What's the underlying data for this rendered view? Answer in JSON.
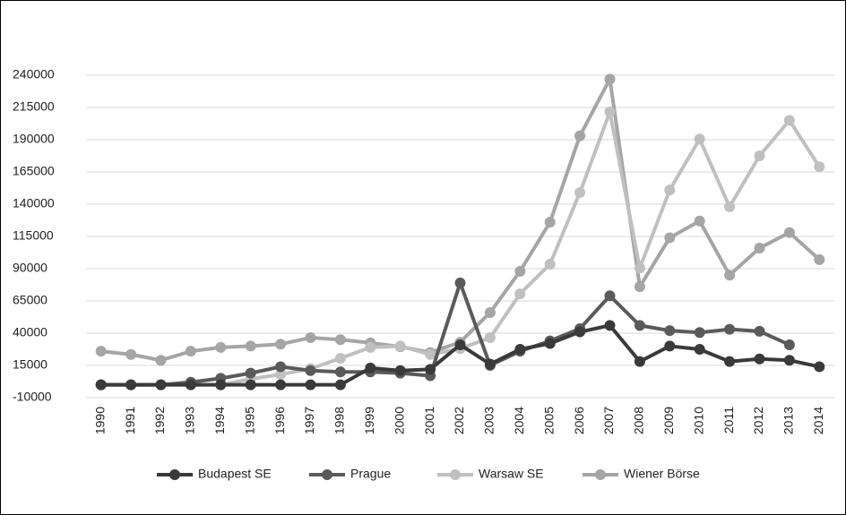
{
  "chart_data": {
    "type": "line",
    "categories": [
      "1990",
      "1991",
      "1992",
      "1993",
      "1994",
      "1995",
      "1996",
      "1997",
      "1998",
      "1999",
      "2000",
      "2001",
      "2002",
      "2003",
      "2004",
      "2005",
      "2006",
      "2007",
      "2008",
      "2009",
      "2010",
      "2011",
      "2012",
      "2013",
      "2014"
    ],
    "series": [
      {
        "name": "Budapest SE",
        "color": "#3a3a3a",
        "values": [
          0,
          0,
          0,
          0,
          0,
          0,
          0,
          0,
          0,
          13000,
          11000,
          12000,
          31000,
          16000,
          27500,
          32000,
          41000,
          46000,
          18000,
          30000,
          27500,
          18000,
          20000,
          19000,
          14000
        ]
      },
      {
        "name": "Prague",
        "color": "#5a5a5a",
        "values": [
          0,
          0,
          0,
          2000,
          5000,
          9000,
          14000,
          11000,
          10000,
          10000,
          9000,
          7000,
          79000,
          15000,
          26000,
          34000,
          43500,
          69000,
          46000,
          42000,
          40500,
          43000,
          41500,
          31000,
          null
        ]
      },
      {
        "name": "Warsaw SE",
        "color": "#c0c0c0",
        "values": [
          0,
          0,
          0,
          0,
          0,
          4500,
          8000,
          12500,
          20500,
          29000,
          30000,
          23500,
          28000,
          36500,
          70500,
          93500,
          149000,
          211500,
          90500,
          151000,
          190500,
          138000,
          177500,
          205000,
          169000
        ]
      },
      {
        "name": "Wiener Börse",
        "color": "#a5a5a5",
        "values": [
          26000,
          23500,
          19000,
          26000,
          29000,
          30000,
          31500,
          36500,
          35000,
          32500,
          29500,
          25000,
          33000,
          56000,
          88000,
          126000,
          193000,
          237000,
          76000,
          114000,
          127000,
          85000,
          106000,
          118000,
          97000
        ]
      }
    ],
    "ylim": [
      -10000,
      240000
    ],
    "yticks": [
      -10000,
      15000,
      40000,
      65000,
      90000,
      115000,
      140000,
      165000,
      190000,
      215000,
      240000
    ],
    "grid": true,
    "legend": "bottom"
  }
}
